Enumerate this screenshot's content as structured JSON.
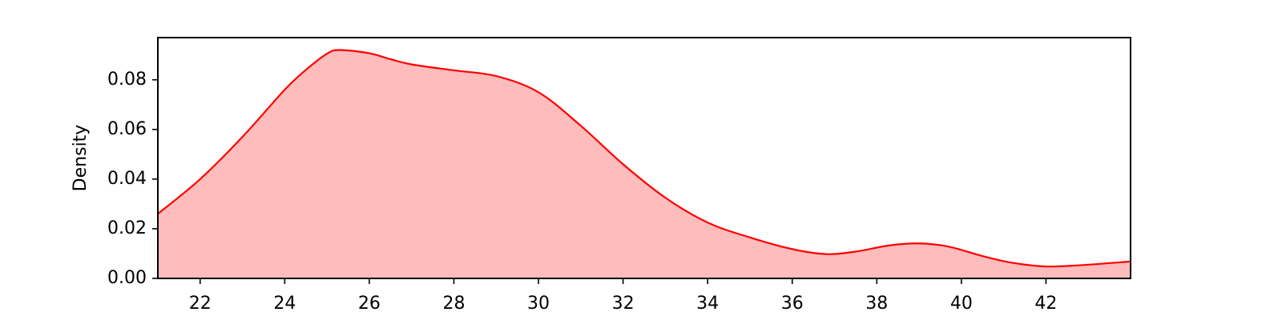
{
  "chart_data": {
    "type": "area",
    "title": "",
    "xlabel": "",
    "ylabel": "Density",
    "xlim": [
      21,
      44
    ],
    "ylim": [
      0,
      0.097
    ],
    "x_ticks": [
      22,
      24,
      26,
      28,
      30,
      32,
      34,
      36,
      38,
      40,
      42
    ],
    "x_tick_labels": [
      "22",
      "24",
      "26",
      "28",
      "30",
      "32",
      "34",
      "36",
      "38",
      "40",
      "42"
    ],
    "y_ticks": [
      0,
      0.02,
      0.04,
      0.06,
      0.08
    ],
    "y_tick_labels": [
      "0.00",
      "0.02",
      "0.04",
      "0.06",
      "0.08"
    ],
    "grid": false,
    "legend": "none",
    "colors": {
      "line": "#ff0000",
      "fill": "#ffbcbc"
    },
    "series": [
      {
        "x": [
          21,
          22,
          23,
          24,
          24.5,
          25,
          25.3,
          26,
          26.5,
          27,
          28,
          29,
          30,
          31,
          32,
          33,
          34,
          35,
          36,
          36.8,
          37.5,
          38.3,
          39,
          39.7,
          40.5,
          41.2,
          42,
          42.8,
          44
        ],
        "y": [
          0.026,
          0.04,
          0.057,
          0.076,
          0.084,
          0.0905,
          0.092,
          0.0907,
          0.0883,
          0.0862,
          0.0838,
          0.0815,
          0.075,
          0.0615,
          0.046,
          0.0325,
          0.0225,
          0.0165,
          0.0118,
          0.0098,
          0.0108,
          0.0133,
          0.0141,
          0.0128,
          0.009,
          0.0063,
          0.0048,
          0.0053,
          0.0068
        ]
      }
    ]
  }
}
